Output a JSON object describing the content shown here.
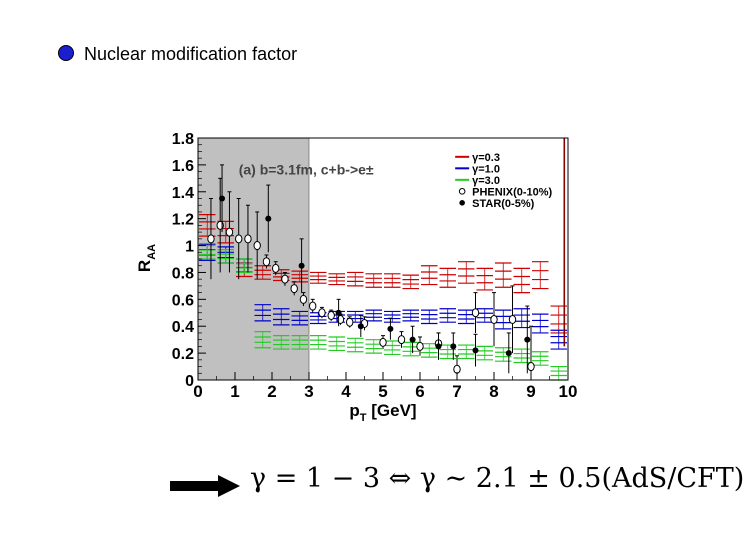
{
  "slide": {
    "title": "Nuclear modification factor",
    "formula": "γ = 1 − 3 ⇔ γ ∼ 2.1 ± 0.5(AdS/CFT)"
  },
  "colors": {
    "bullet": "#1b1fd0",
    "g03": "#cc0000",
    "g10": "#0000cc",
    "g30": "#22cc22",
    "shade": "#c0c0c0",
    "spike": "#880000"
  },
  "chart_data": {
    "type": "scatter",
    "annotation": "(a) b=3.1fm, c+b->e±",
    "xlabel": "pT [GeV]",
    "ylabel": "RAA",
    "xlim": [
      0,
      10
    ],
    "ylim": [
      0,
      1.8
    ],
    "xticks": [
      "0",
      "1",
      "2",
      "3",
      "4",
      "5",
      "6",
      "7",
      "8",
      "9",
      "10"
    ],
    "yticks": [
      "0",
      "0.2",
      "0.4",
      "0.6",
      "0.8",
      "1",
      "1.2",
      "1.4",
      "1.6",
      "1.8"
    ],
    "shaded_region": [
      0,
      3
    ],
    "legend": [
      "γ=0.3",
      "γ=1.0",
      "γ=3.0",
      "PHENIX(0-10%)",
      "STAR(0-5%)"
    ],
    "series": [
      {
        "name": "γ=0.3",
        "kind": "band",
        "color": "#cc0000",
        "x": [
          0.25,
          0.75,
          1.25,
          1.75,
          2.25,
          2.75,
          3.25,
          3.75,
          4.25,
          4.75,
          5.25,
          5.75,
          6.25,
          6.75,
          7.25,
          7.75,
          8.25,
          8.75,
          9.25,
          9.75
        ],
        "y": [
          1.15,
          1.1,
          0.82,
          0.8,
          0.78,
          0.77,
          0.76,
          0.75,
          0.75,
          0.74,
          0.74,
          0.73,
          0.78,
          0.76,
          0.8,
          0.75,
          0.78,
          0.74,
          0.78,
          0.45
        ],
        "spread": [
          0.08,
          0.08,
          0.05,
          0.05,
          0.04,
          0.04,
          0.04,
          0.04,
          0.05,
          0.05,
          0.05,
          0.05,
          0.07,
          0.07,
          0.08,
          0.08,
          0.09,
          0.09,
          0.1,
          0.1
        ]
      },
      {
        "name": "γ=1.0",
        "kind": "band",
        "color": "#0000cc",
        "x": [
          0.25,
          0.75,
          1.25,
          1.75,
          2.25,
          2.75,
          3.25,
          3.75,
          4.25,
          4.75,
          5.25,
          5.75,
          6.25,
          6.75,
          7.25,
          7.75,
          8.25,
          8.75,
          9.25,
          9.75
        ],
        "y": [
          0.95,
          0.93,
          0.85,
          0.5,
          0.47,
          0.46,
          0.46,
          0.47,
          0.47,
          0.48,
          0.47,
          0.48,
          0.47,
          0.48,
          0.47,
          0.48,
          0.45,
          0.46,
          0.42,
          0.3
        ],
        "spread": [
          0.06,
          0.06,
          0.05,
          0.06,
          0.06,
          0.05,
          0.04,
          0.04,
          0.04,
          0.04,
          0.04,
          0.04,
          0.05,
          0.05,
          0.05,
          0.05,
          0.07,
          0.07,
          0.07,
          0.07
        ]
      },
      {
        "name": "γ=3.0",
        "kind": "band",
        "color": "#22cc22",
        "x": [
          0.25,
          0.75,
          1.25,
          1.75,
          2.25,
          2.75,
          3.25,
          3.75,
          4.25,
          4.75,
          5.25,
          5.75,
          6.25,
          6.75,
          7.25,
          7.75,
          8.25,
          8.75,
          9.25,
          9.75
        ],
        "y": [
          0.95,
          0.92,
          0.85,
          0.3,
          0.28,
          0.28,
          0.28,
          0.27,
          0.26,
          0.25,
          0.24,
          0.23,
          0.22,
          0.21,
          0.21,
          0.2,
          0.19,
          0.18,
          0.16,
          0.05
        ],
        "spread": [
          0.05,
          0.05,
          0.05,
          0.06,
          0.05,
          0.05,
          0.05,
          0.05,
          0.05,
          0.05,
          0.05,
          0.05,
          0.05,
          0.05,
          0.05,
          0.05,
          0.05,
          0.05,
          0.05,
          0.05
        ]
      },
      {
        "name": "PHENIX(0-10%)",
        "kind": "open",
        "color": "#000000",
        "x": [
          0.35,
          0.6,
          0.85,
          1.1,
          1.35,
          1.6,
          1.85,
          2.1,
          2.35,
          2.6,
          2.85,
          3.1,
          3.35,
          3.6,
          3.85,
          4.1,
          4.5,
          5.0,
          5.5,
          6.0,
          6.5,
          7.0,
          7.5,
          8.0,
          8.5,
          9.0
        ],
        "y": [
          1.05,
          1.15,
          1.1,
          1.05,
          1.05,
          1.0,
          0.88,
          0.83,
          0.75,
          0.68,
          0.6,
          0.55,
          0.5,
          0.48,
          0.45,
          0.43,
          0.42,
          0.28,
          0.3,
          0.25,
          0.27,
          0.08,
          0.5,
          0.45,
          0.45,
          0.1
        ],
        "err": [
          0.3,
          0.35,
          0.3,
          0.3,
          0.25,
          0.25,
          0.05,
          0.05,
          0.05,
          0.05,
          0.05,
          0.05,
          0.04,
          0.04,
          0.04,
          0.04,
          0.05,
          0.05,
          0.06,
          0.07,
          0.08,
          0.1,
          0.15,
          0.2,
          0.25,
          0.3
        ]
      },
      {
        "name": "STAR(0-5%)",
        "kind": "filled",
        "color": "#000000",
        "x": [
          0.65,
          1.9,
          2.8,
          3.8,
          4.4,
          5.2,
          5.8,
          6.5,
          6.9,
          7.5,
          8.4,
          8.9
        ],
        "y": [
          1.35,
          1.2,
          0.85,
          0.5,
          0.4,
          0.38,
          0.3,
          0.25,
          0.25,
          0.22,
          0.2,
          0.3
        ],
        "err": [
          0.25,
          0.25,
          0.2,
          0.1,
          0.08,
          0.08,
          0.1,
          0.1,
          0.1,
          0.12,
          0.15,
          0.25
        ]
      }
    ],
    "spike": {
      "x": 9.9,
      "top": 1.8
    }
  }
}
